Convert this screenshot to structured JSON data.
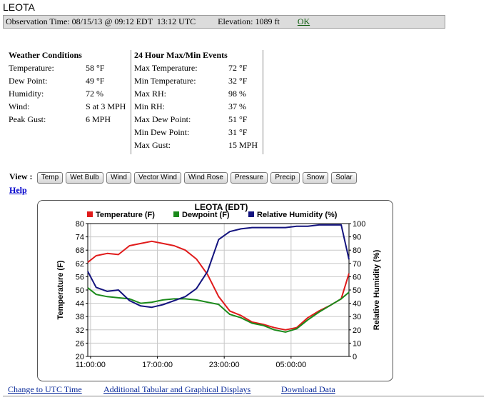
{
  "station": "LEOTA",
  "obs": {
    "observation_time": "Observation Time: 08/15/13 @ 09:12 EDT  13:12 UTC",
    "elevation": "Elevation: 1089 ft",
    "ok_link": "OK"
  },
  "weather": {
    "title": "Weather Conditions",
    "rows": [
      {
        "label": "Temperature:",
        "value": "58 °F"
      },
      {
        "label": "Dew Point:",
        "value": "49 °F"
      },
      {
        "label": "Humidity:",
        "value": "72 %"
      },
      {
        "label": "Wind:",
        "value": "S at 3 MPH"
      },
      {
        "label": "Peak Gust:",
        "value": "6 MPH"
      }
    ]
  },
  "events": {
    "title": "24 Hour Max/Min Events",
    "rows": [
      {
        "label": "Max Temperature:",
        "value": "72 °F"
      },
      {
        "label": "Min Temperature:",
        "value": "32 °F"
      },
      {
        "label": "Max RH:",
        "value": "98 %"
      },
      {
        "label": "Min RH:",
        "value": "37 %"
      },
      {
        "label": "Max Dew Point:",
        "value": "51 °F"
      },
      {
        "label": "Min Dew Point:",
        "value": "31 °F"
      },
      {
        "label": "Max Gust:",
        "value": "15 MPH"
      }
    ]
  },
  "view": {
    "label": "View :",
    "buttons": [
      "Temp",
      "Wet Bulb",
      "Wind",
      "Vector Wind",
      "Wind Rose",
      "Pressure",
      "Precip",
      "Snow",
      "Solar"
    ]
  },
  "help": "Help",
  "links": {
    "utc": "Change to UTC Time",
    "tabular": "Additional Tabular and Graphical Displays",
    "download": "Download Data"
  },
  "colors": {
    "temperature": "#e01b1b",
    "dewpoint": "#1b8a1b",
    "humidity": "#13137e"
  },
  "chart_data": {
    "type": "line",
    "title": "LEOTA (EDT)",
    "ylabel": "Temperature (F)",
    "y2label": "Relative Humidity (%)",
    "ylim": [
      20,
      80
    ],
    "y2lim": [
      0,
      100
    ],
    "yticks": [
      20,
      26,
      32,
      38,
      44,
      50,
      56,
      62,
      68,
      74,
      80
    ],
    "y2ticks": [
      0,
      10,
      20,
      30,
      40,
      50,
      60,
      70,
      80,
      90,
      100
    ],
    "xlabels": [
      "11:00:00",
      "17:00:00",
      "23:00:00",
      "05:00:00"
    ],
    "x_hours": [
      11,
      17,
      23,
      29
    ],
    "xlim": [
      10.75,
      34.2
    ],
    "grid": true,
    "legend_position": "top",
    "series": [
      {
        "name": "Temperature (F)",
        "axis": "left",
        "x": [
          10.75,
          11.5,
          12.5,
          13.5,
          14.5,
          15.5,
          16.5,
          17.5,
          18.5,
          19.5,
          20.5,
          21.5,
          22.5,
          23.5,
          24.5,
          25.5,
          26.5,
          27.5,
          28.5,
          29.5,
          30.5,
          31.5,
          32.5,
          33.5,
          34.2
        ],
        "values": [
          62.5,
          65.5,
          66.5,
          66,
          70,
          71,
          72,
          71,
          70,
          68,
          64,
          57,
          47,
          40.5,
          38.5,
          35.5,
          34.5,
          33,
          32,
          33,
          37.5,
          40.5,
          43,
          46,
          57.5
        ]
      },
      {
        "name": "Dewpoint (F)",
        "axis": "left",
        "x": [
          10.75,
          11.5,
          12.5,
          13.5,
          14.5,
          15.5,
          16.5,
          17.5,
          18.5,
          19.5,
          20.5,
          21.5,
          22.5,
          23.5,
          24.5,
          25.5,
          26.5,
          27.5,
          28.5,
          29.5,
          30.5,
          31.5,
          32.5,
          33.5,
          34.2
        ],
        "values": [
          51,
          48,
          47,
          46.5,
          46,
          44,
          44.5,
          45.5,
          46,
          46,
          45.5,
          44.5,
          43.5,
          39,
          37.5,
          35,
          34,
          32,
          31,
          32.5,
          36.5,
          40,
          43,
          46,
          49
        ]
      },
      {
        "name": "Relative Humidity (%)",
        "axis": "right",
        "x": [
          10.75,
          11.5,
          12.5,
          13.5,
          14.5,
          15.5,
          16.5,
          17.5,
          18.5,
          19.5,
          20.5,
          21.5,
          22.5,
          23.5,
          24.5,
          25.5,
          26.5,
          27.5,
          28.5,
          29.5,
          30.5,
          31.5,
          32.5,
          33.5,
          34.2
        ],
        "values": [
          64,
          52,
          49,
          50,
          42,
          38,
          37,
          39,
          42,
          45,
          51,
          64,
          88,
          94,
          96,
          97,
          97,
          97,
          97,
          98,
          98,
          99,
          99,
          99,
          73
        ]
      }
    ]
  }
}
